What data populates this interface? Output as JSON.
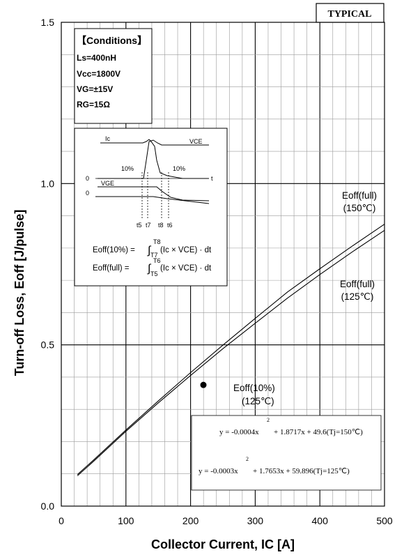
{
  "chart_data": {
    "type": "line",
    "badge": "TYPICAL",
    "xlabel": "Collector Current, IC [A]",
    "ylabel": "Turn-off Loss, Eoff [J/pulse]",
    "xlim": [
      0,
      500
    ],
    "ylim": [
      0,
      1.5
    ],
    "x_ticks": [
      "0",
      "100",
      "200",
      "300",
      "400",
      "500"
    ],
    "y_ticks": [
      "0.0",
      "0.5",
      "1.0",
      "1.5"
    ],
    "grid": true,
    "series": [
      {
        "name": "Eoff(full) (150°C)",
        "label_line1": "Eoff(full)",
        "label_line2": "(150℃)",
        "x": [
          25,
          50,
          100,
          150,
          200,
          250,
          300,
          350,
          400,
          450,
          500
        ],
        "y": [
          0.098,
          0.143,
          0.236,
          0.326,
          0.414,
          0.499,
          0.582,
          0.664,
          0.736,
          0.806,
          0.874
        ]
      },
      {
        "name": "Eoff(full) (125°C)",
        "label_line1": "Eoff(full)",
        "label_line2": "(125℃)",
        "x": [
          25,
          50,
          100,
          150,
          200,
          250,
          300,
          350,
          400,
          450,
          500
        ],
        "y": [
          0.094,
          0.139,
          0.232,
          0.32,
          0.405,
          0.488,
          0.567,
          0.645,
          0.718,
          0.788,
          0.855
        ]
      }
    ],
    "points": [
      {
        "label_line1": "Eoff(10%)",
        "label_line2": "(125℃)",
        "x": 250,
        "y": 0.38
      }
    ],
    "conditions": {
      "title": "【Conditions】",
      "lines": [
        "Ls=400nH",
        "Vcc=1800V",
        "VG=±15V",
        "RG=15Ω"
      ]
    },
    "waveform": {
      "ic": "Ic",
      "vce": "VCE",
      "vge": "VGE",
      "zero": "0",
      "t": "t",
      "pct_left": "10%",
      "pct_right": "10%",
      "times": [
        "t5",
        "t7",
        "t8",
        "t6"
      ],
      "formula_10": {
        "lhs": "Eoff(10%) = ",
        "upper": "T8",
        "lower": "T7",
        "rhs": "(Ic × VCE) · dt"
      },
      "formula_full": {
        "lhs": "Eoff(full) = ",
        "upper": "T6",
        "lower": "T5",
        "rhs": "(Ic × VCE) · dt"
      }
    },
    "equations": [
      {
        "main": "y = -0.0004x",
        "sup": "2",
        "tail": "+ 1.8717x + 49.6(Tj=150℃)"
      },
      {
        "main": "y = -0.0003x",
        "sup": "2",
        "tail": "+ 1.7653x + 59.896(Tj=125℃)"
      }
    ]
  }
}
